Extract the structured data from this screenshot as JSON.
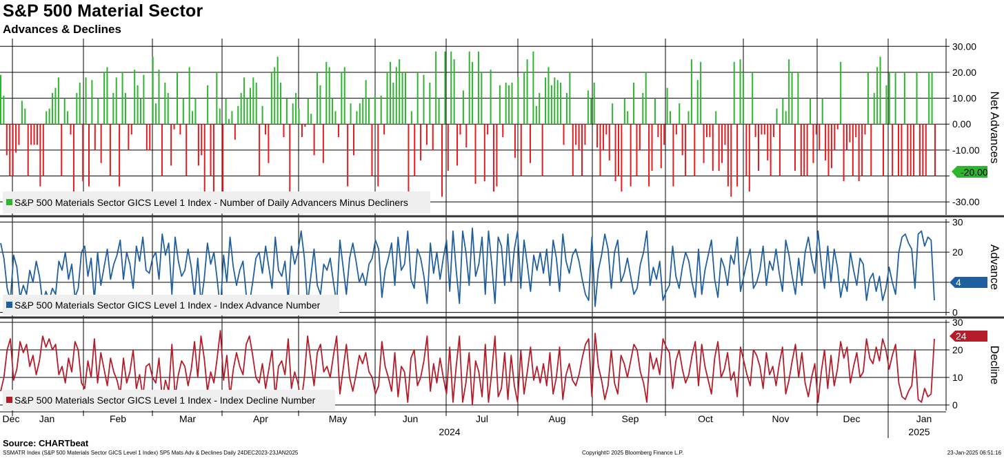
{
  "title": "S&P 500 Material Sector",
  "subtitle": "Advances & Declines",
  "source": "Source: CHARTbeat",
  "footer": {
    "left": "SSMATR Index (S&P 500 Materials Sector GICS Level 1 Index) SP5 Mats Adv & Declines  Daily 24DEC2023-23JAN2025",
    "center": "Copyright© 2025 Bloomberg Finance L.P.",
    "right": "23-Jan-2025 06:51:16"
  },
  "colors": {
    "positive": "#2db52d",
    "negative": "#e8191c",
    "advance": "#1f5f9e",
    "decline": "#b51c2a",
    "grid": "#000000"
  },
  "x_axis": {
    "months": [
      "Dec",
      "Jan",
      "Feb",
      "Mar",
      "Apr",
      "May",
      "Jun",
      "Jul",
      "Aug",
      "Sep",
      "Oct",
      "Nov",
      "Dec",
      "Jan"
    ],
    "years": [
      "2024",
      "2025"
    ]
  },
  "chart_data": [
    {
      "type": "bar",
      "title": "Net Advances",
      "ylabel": "Net Advances",
      "legend": "S&P 500 Materials Sector GICS Level 1 Index - Number of Daily Advancers Minus Decliners",
      "ylim": [
        -35,
        33
      ],
      "yticks": [
        30,
        20,
        10,
        0,
        -10,
        -20,
        -30
      ],
      "ytick_labels": [
        "30.00",
        "20.00",
        "10.00",
        "0.00",
        "-10.00",
        "",
        "-30.00"
      ],
      "last_value_label": "-20.00",
      "values": [
        19,
        11,
        -12,
        -20,
        -20,
        -11,
        -8,
        9,
        6,
        -20,
        -8,
        -8,
        -8,
        -24,
        -20,
        5,
        6,
        12,
        14,
        18,
        -20,
        10,
        5,
        -4,
        -27,
        12,
        16,
        -22,
        18,
        -24,
        17,
        -10,
        10,
        -15,
        20,
        22,
        -20,
        12,
        18,
        -24,
        20,
        12,
        -10,
        -4,
        21,
        15,
        10,
        19,
        -10,
        -10,
        26,
        8,
        21,
        -20,
        16,
        12,
        -16,
        -2,
        20,
        -4,
        10,
        -20,
        22,
        5,
        10,
        -16,
        -12,
        -26,
        15,
        -20,
        -26,
        20,
        6,
        -26,
        10,
        2,
        5,
        -6,
        7,
        12,
        18,
        10,
        14,
        18,
        16,
        -20,
        7,
        -4,
        -15,
        20,
        22,
        26,
        16,
        -5,
        10,
        -26,
        8,
        12,
        6,
        -5,
        -1,
        10,
        4,
        -12,
        20,
        15,
        -15,
        24,
        22,
        10,
        5,
        -5,
        20,
        22,
        -24,
        8,
        -12,
        5,
        8,
        10,
        17,
        10,
        -20,
        11,
        -24,
        11,
        -4,
        20,
        24,
        16,
        22,
        25,
        20,
        20,
        -26,
        5,
        -20,
        20,
        -14,
        19,
        -8,
        16,
        -10,
        28,
        10,
        -28,
        28,
        -18,
        28,
        25,
        -16,
        -4,
        13,
        -9,
        28,
        24,
        -23,
        28,
        20,
        -22,
        -4,
        21,
        -26,
        -24,
        15,
        -5,
        16,
        15,
        16,
        -13,
        18,
        -20,
        20,
        25,
        -15,
        28,
        7,
        12,
        -20,
        18,
        22,
        15,
        18,
        17,
        16,
        -8,
        12,
        20,
        -20,
        -8,
        -10,
        -20,
        -8,
        13,
        10,
        16,
        -9,
        -20,
        -10,
        -4,
        -14,
        8,
        -22,
        -20,
        -26,
        10,
        5,
        -24,
        16,
        -20,
        -10,
        12,
        20,
        -24,
        -18,
        10,
        -5,
        -17,
        -8,
        14,
        5,
        -24,
        -4,
        8,
        -12,
        -20,
        5,
        25,
        -20,
        17,
        24,
        -15,
        -5,
        -5,
        -18,
        5,
        -18,
        -15,
        -8,
        -24,
        -28,
        24,
        -24,
        25,
        20,
        -20,
        -26,
        20,
        -5,
        -18,
        -4,
        -4,
        -14,
        -20,
        -5,
        6,
        -20,
        10,
        5,
        25,
        20,
        -18,
        20,
        -20,
        -20,
        -20,
        10,
        -15,
        -4,
        -10,
        10,
        -14,
        -20,
        -17,
        -10,
        -2,
        24,
        -22,
        -10,
        -7,
        -20,
        -5,
        -22,
        -20,
        -4,
        20,
        -20,
        12,
        22,
        26,
        -20,
        15,
        20,
        -20,
        20,
        -20,
        -20,
        20,
        -20,
        -20,
        -20,
        20,
        -20,
        -20,
        -20,
        20,
        20,
        -20
      ]
    },
    {
      "type": "line",
      "title": "Advance",
      "ylabel": "Advance",
      "legend": "S&P 500 Materials Sector GICS Level 1 Index - Index Advance Number",
      "ylim": [
        -1,
        31
      ],
      "yticks": [
        30,
        20,
        10,
        0
      ],
      "last_value_label": "4",
      "values": [
        23,
        18,
        8,
        4,
        19,
        15,
        5,
        9,
        6,
        14,
        10,
        17,
        12,
        3,
        7,
        4,
        8,
        6,
        17,
        14,
        20,
        11,
        16,
        5,
        8,
        20,
        22,
        12,
        18,
        4,
        20,
        9,
        15,
        21,
        11,
        16,
        19,
        24,
        11,
        20,
        16,
        8,
        22,
        17,
        25,
        14,
        13,
        18,
        20,
        11,
        26,
        19,
        23,
        6,
        25,
        17,
        12,
        14,
        21,
        15,
        5,
        18,
        3,
        11,
        23,
        16,
        20,
        11,
        1,
        19,
        10,
        25,
        15,
        9,
        14,
        17,
        6,
        3,
        10,
        18,
        20,
        13,
        22,
        15,
        8,
        25,
        14,
        12,
        17,
        4,
        22,
        16,
        20,
        27,
        18,
        3,
        12,
        21,
        9,
        6,
        16,
        14,
        18,
        10,
        3,
        24,
        15,
        6,
        18,
        23,
        17,
        10,
        13,
        9,
        16,
        18,
        24,
        21,
        5,
        14,
        18,
        23,
        9,
        25,
        14,
        16,
        27,
        11,
        8,
        21,
        18,
        12,
        3,
        23,
        13,
        20,
        11,
        18,
        24,
        7,
        27,
        14,
        3,
        27,
        20,
        9,
        28,
        12,
        16,
        25,
        6,
        27,
        16,
        3,
        25,
        22,
        9,
        26,
        10,
        21,
        27,
        8,
        24,
        16,
        7,
        19,
        14,
        20,
        13,
        21,
        9,
        24,
        18,
        7,
        26,
        17,
        13,
        19,
        21,
        17,
        11,
        6,
        4,
        25,
        2,
        14,
        19,
        26,
        21,
        8,
        20,
        24,
        10,
        13,
        18,
        12,
        6,
        8,
        16,
        20,
        27,
        9,
        15,
        11,
        17,
        4,
        7,
        9,
        22,
        12,
        8,
        15,
        20,
        17,
        10,
        5,
        21,
        6,
        14,
        19,
        24,
        11,
        5,
        18,
        15,
        9,
        19,
        16,
        25,
        7,
        12,
        17,
        21,
        8,
        10,
        14,
        22,
        9,
        17,
        14,
        21,
        13,
        7,
        24,
        19,
        12,
        6,
        18,
        9,
        20,
        25,
        18,
        13,
        27,
        16,
        8,
        22,
        10,
        21,
        15,
        5,
        11,
        7,
        20,
        14,
        9,
        18,
        16,
        4,
        11,
        13,
        7,
        12,
        4,
        8,
        15,
        10,
        6,
        20,
        25,
        26,
        23,
        21,
        8,
        26,
        27,
        22,
        25,
        24,
        4
      ]
    },
    {
      "type": "line",
      "title": "Decline",
      "ylabel": "Decline",
      "legend": "S&P 500 Materials Sector GICS Level 1 Index - Index Decline Number",
      "ylim": [
        -2,
        31
      ],
      "yticks": [
        30,
        20,
        10,
        0
      ],
      "last_value_label": "24",
      "values": [
        5,
        10,
        20,
        24,
        9,
        13,
        23,
        19,
        22,
        14,
        18,
        11,
        16,
        25,
        21,
        24,
        20,
        22,
        11,
        14,
        8,
        17,
        12,
        23,
        20,
        8,
        6,
        16,
        10,
        24,
        8,
        19,
        13,
        7,
        17,
        12,
        9,
        4,
        17,
        8,
        12,
        20,
        6,
        11,
        3,
        14,
        15,
        10,
        8,
        17,
        2,
        9,
        5,
        22,
        3,
        11,
        16,
        14,
        7,
        13,
        23,
        10,
        25,
        17,
        5,
        12,
        8,
        17,
        27,
        9,
        18,
        3,
        13,
        19,
        14,
        11,
        22,
        25,
        18,
        10,
        8,
        15,
        6,
        13,
        20,
        3,
        14,
        16,
        11,
        24,
        6,
        12,
        8,
        1,
        10,
        25,
        16,
        7,
        19,
        22,
        12,
        14,
        10,
        18,
        25,
        4,
        13,
        22,
        10,
        5,
        11,
        18,
        15,
        19,
        12,
        10,
        4,
        7,
        23,
        14,
        10,
        5,
        19,
        3,
        14,
        12,
        1,
        17,
        20,
        7,
        10,
        16,
        25,
        5,
        15,
        8,
        17,
        10,
        4,
        21,
        1,
        14,
        25,
        1,
        8,
        19,
        0,
        16,
        12,
        3,
        22,
        1,
        12,
        25,
        3,
        6,
        19,
        2,
        18,
        7,
        1,
        20,
        4,
        12,
        21,
        9,
        14,
        8,
        15,
        7,
        19,
        4,
        10,
        21,
        2,
        11,
        15,
        9,
        7,
        11,
        17,
        22,
        24,
        3,
        26,
        14,
        9,
        2,
        7,
        20,
        8,
        4,
        18,
        15,
        10,
        16,
        22,
        20,
        12,
        8,
        1,
        19,
        13,
        17,
        11,
        24,
        21,
        19,
        6,
        16,
        20,
        13,
        8,
        11,
        18,
        23,
        7,
        22,
        14,
        9,
        4,
        17,
        23,
        10,
        13,
        19,
        9,
        12,
        3,
        21,
        16,
        11,
        7,
        20,
        18,
        14,
        6,
        19,
        11,
        14,
        7,
        15,
        21,
        4,
        9,
        16,
        22,
        10,
        19,
        8,
        3,
        10,
        15,
        1,
        12,
        20,
        6,
        18,
        7,
        13,
        23,
        17,
        21,
        8,
        14,
        19,
        10,
        12,
        24,
        17,
        15,
        21,
        16,
        24,
        20,
        13,
        18,
        22,
        8,
        3,
        2,
        5,
        7,
        20,
        2,
        1,
        6,
        3,
        4,
        24
      ]
    }
  ]
}
